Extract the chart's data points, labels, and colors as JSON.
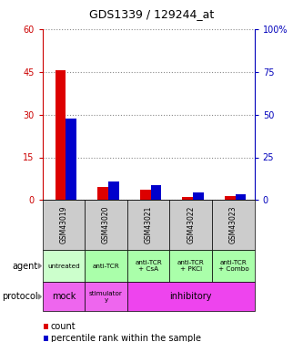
{
  "title": "GDS1339 / 129244_at",
  "samples": [
    "GSM43019",
    "GSM43020",
    "GSM43021",
    "GSM43022",
    "GSM43023"
  ],
  "count_values": [
    45.5,
    4.5,
    3.5,
    1.0,
    1.5
  ],
  "percentile_values": [
    47.5,
    11.0,
    8.5,
    4.5,
    3.5
  ],
  "left_ylim": [
    0,
    60
  ],
  "right_ylim": [
    0,
    100
  ],
  "left_yticks": [
    0,
    15,
    30,
    45,
    60
  ],
  "right_yticks": [
    0,
    25,
    50,
    75,
    100
  ],
  "left_ytick_labels": [
    "0",
    "15",
    "30",
    "45",
    "60"
  ],
  "right_ytick_labels": [
    "0",
    "25",
    "50",
    "75",
    "100%"
  ],
  "bar_width": 0.25,
  "count_color": "#dd0000",
  "percentile_color": "#0000cc",
  "grid_color": "#888888",
  "agent_labels": [
    "untreated",
    "anti-TCR",
    "anti-TCR\n+ CsA",
    "anti-TCR\n+ PKCi",
    "anti-TCR\n+ Combo"
  ],
  "protocol_labels_mock": "mock",
  "protocol_labels_stim": "stimulator\ny",
  "protocol_labels_inhib": "inhibitory",
  "agent_color_0": "#ccffcc",
  "agent_color_1": "#aaffaa",
  "agent_color_2": "#aaffaa",
  "agent_color_3": "#aaffaa",
  "agent_color_4": "#aaffaa",
  "protocol_mock_bg": "#ee66ee",
  "protocol_stim_bg": "#ee66ee",
  "protocol_inhib_bg": "#ee44ee",
  "sample_label_bg": "#cccccc",
  "left_label_color": "#cc0000",
  "right_label_color": "#0000bb"
}
